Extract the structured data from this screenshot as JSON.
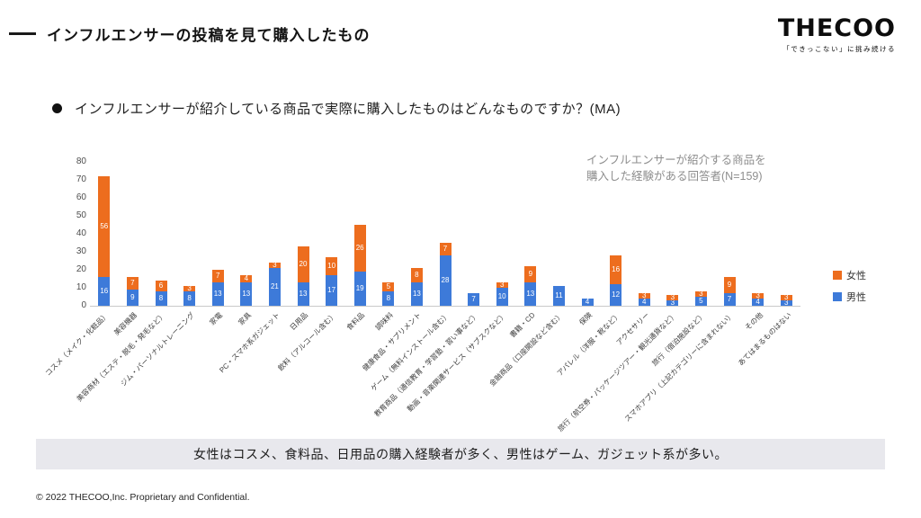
{
  "header": {
    "title": "インフルエンサーの投稿を見て購入したもの",
    "logo": "THECOO",
    "logo_tagline": "「できっこない」に挑み続ける"
  },
  "question": "インフルエンサーが紹介している商品で実際に購入したものはどんなものですか？(MA)",
  "annotation": {
    "line1": "インフルエンサーが紹介する商品を",
    "line2": "購入した経験がある回答者(N=159)"
  },
  "chart_data": {
    "type": "bar",
    "stacked": true,
    "stack_bottom": "男性",
    "ylim": [
      0,
      80
    ],
    "ytick_step": 10,
    "grid": false,
    "legend_position": "right",
    "categories": [
      "コスメ（メイク・化粧品）",
      "美容機器",
      "美容商材（エステ・脱毛・発毛など）",
      "ジム・パーソナルトレーニング",
      "家電",
      "家具",
      "PC・スマホ系ガジェット",
      "日用品",
      "飲料（アルコール含む）",
      "食料品",
      "調味料",
      "健康食品・サプリメント",
      "ゲーム（無料インストール含む）",
      "教育商品（通信教育・学習塾・習い事など）",
      "動画・音楽関連サービス（サブスクなど）",
      "書籍・CD",
      "金融商品（口座開設など含む）",
      "保険",
      "アパレル（洋服・靴など）",
      "アクセサリー",
      "旅行（航空券・パッケージツアー・観光通貨など）",
      "旅行（宿泊施設など）",
      "スマホアプリ（上記カテゴリーに含まれない）",
      "その他",
      "あてはまるものはない"
    ],
    "series": [
      {
        "name": "女性",
        "color": "#ED6D1E",
        "values": [
          56,
          7,
          6,
          3,
          7,
          4,
          3,
          20,
          10,
          26,
          5,
          8,
          7,
          0,
          3,
          9,
          0,
          0,
          16,
          3,
          3,
          3,
          9,
          3,
          3
        ]
      },
      {
        "name": "男性",
        "color": "#3D7AD9",
        "values": [
          16,
          9,
          8,
          8,
          13,
          13,
          21,
          13,
          17,
          19,
          8,
          13,
          28,
          7,
          10,
          13,
          11,
          4,
          12,
          4,
          3,
          5,
          7,
          4,
          3
        ]
      }
    ]
  },
  "summary": "女性はコスメ、食料品、日用品の購入経験者が多く、男性はゲーム、ガジェット系が多い。",
  "footer": "© 2022 THECOO,Inc. Proprietary and Confidential."
}
